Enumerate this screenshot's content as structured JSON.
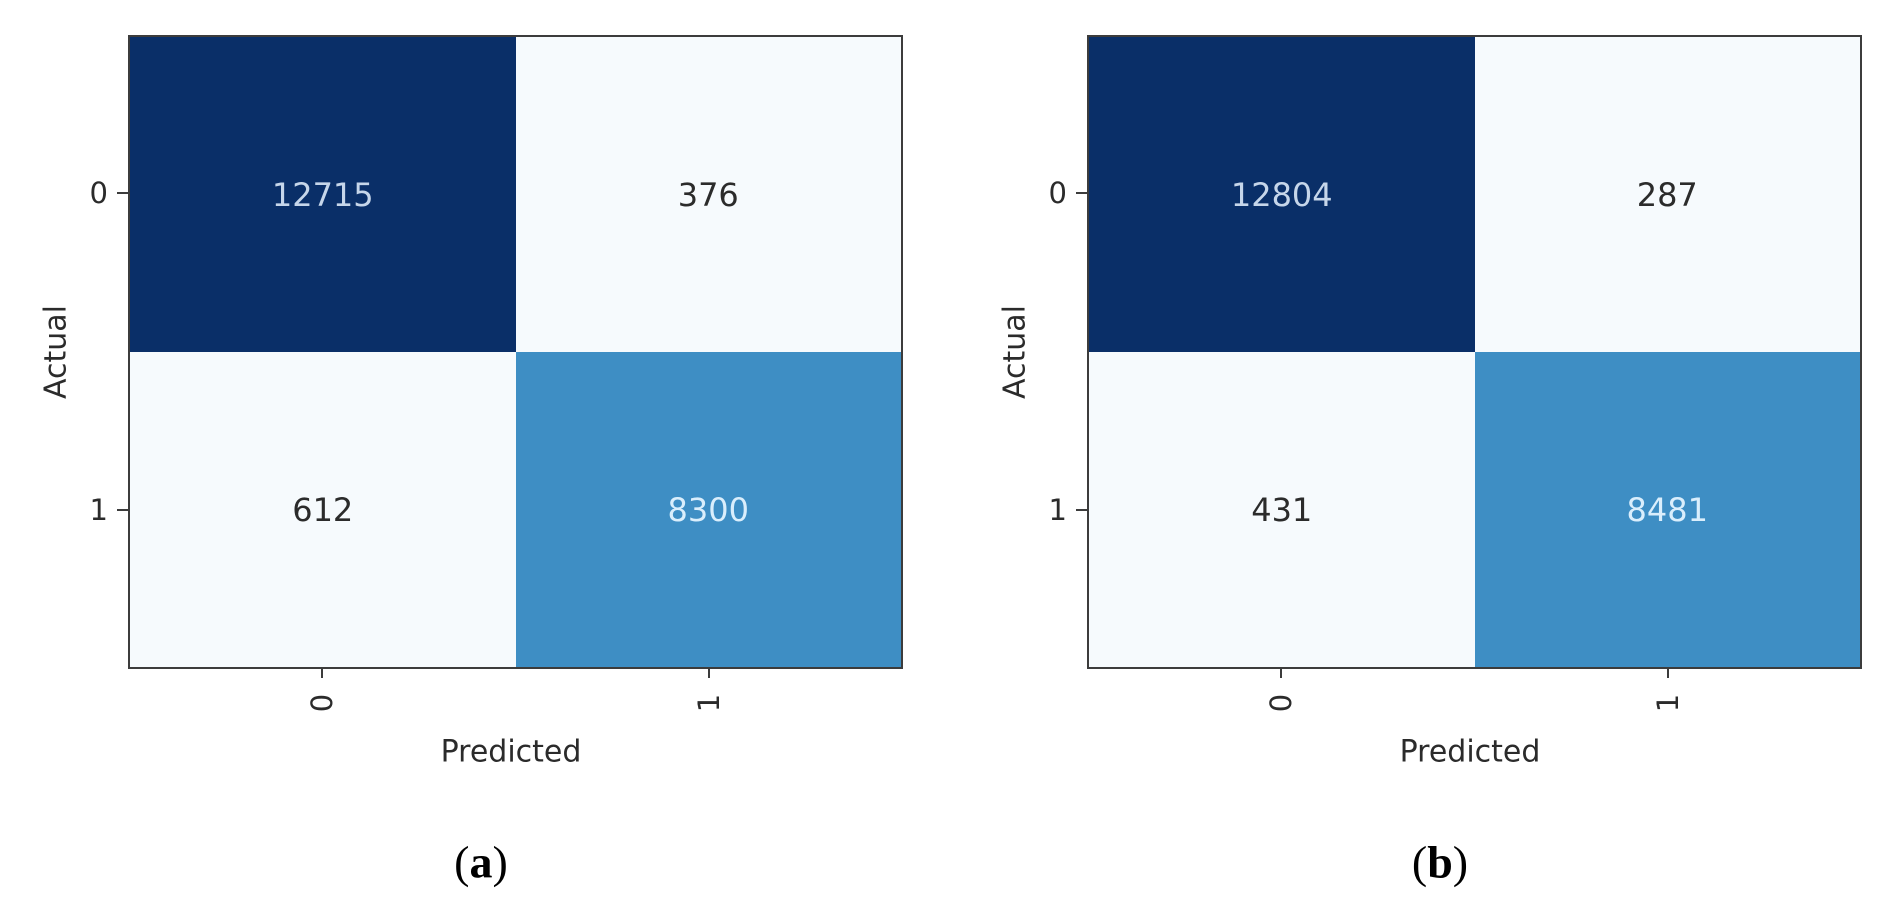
{
  "figure": {
    "background": "#ffffff",
    "colors": {
      "cell_dark": "#0a2f68",
      "cell_light": "#f6fafd",
      "cell_mid": "#3e8ec4",
      "text_on_dark": "#c6d6ea",
      "text_on_mid": "#daeefc",
      "text_dark": "#2b2b2b",
      "spine": "#3c3c3c"
    },
    "panels": [
      {
        "caption_open": "(",
        "caption_letter": "a",
        "caption_close": ")",
        "xlabel": "Predicted",
        "ylabel": "Actual",
        "xticks": [
          "0",
          "1"
        ],
        "yticks": [
          "0",
          "1"
        ],
        "cells": {
          "r0c0": "12715",
          "r0c1": "376",
          "r1c0": "612",
          "r1c1": "8300"
        }
      },
      {
        "caption_open": "(",
        "caption_letter": "b",
        "caption_close": ")",
        "xlabel": "Predicted",
        "ylabel": "Actual",
        "xticks": [
          "0",
          "1"
        ],
        "yticks": [
          "0",
          "1"
        ],
        "cells": {
          "r0c0": "12804",
          "r0c1": "287",
          "r1c0": "431",
          "r1c1": "8481"
        }
      }
    ]
  },
  "chart_data": [
    {
      "type": "heatmap",
      "title": "(a)",
      "xlabel": "Predicted",
      "ylabel": "Actual",
      "x_ticklabels": [
        "0",
        "1"
      ],
      "y_ticklabels": [
        "0",
        "1"
      ],
      "matrix": [
        [
          12715,
          376
        ],
        [
          612,
          8300
        ]
      ],
      "colormap": "Blues",
      "legend": "none",
      "grid": false
    },
    {
      "type": "heatmap",
      "title": "(b)",
      "xlabel": "Predicted",
      "ylabel": "Actual",
      "x_ticklabels": [
        "0",
        "1"
      ],
      "y_ticklabels": [
        "0",
        "1"
      ],
      "matrix": [
        [
          12804,
          287
        ],
        [
          431,
          8481
        ]
      ],
      "colormap": "Blues",
      "legend": "none",
      "grid": false
    }
  ]
}
